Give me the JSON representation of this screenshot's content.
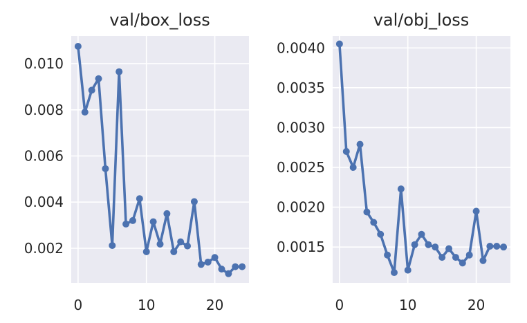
{
  "chart_data": [
    {
      "type": "line",
      "title": "val/box_loss",
      "xlabel": "",
      "ylabel": "",
      "xlim": [
        -1,
        25
      ],
      "ylim": [
        0.0005,
        0.0112
      ],
      "xticks": [
        0,
        10,
        20
      ],
      "xtick_labels": [
        "0",
        "10",
        "20"
      ],
      "yticks": [
        0.002,
        0.004,
        0.006,
        0.008,
        0.01
      ],
      "ytick_labels": [
        "0.002",
        "0.004",
        "0.006",
        "0.008",
        "0.010"
      ],
      "grid": true,
      "color": "#4c72b0",
      "x": [
        0,
        1,
        2,
        3,
        4,
        5,
        6,
        7,
        8,
        9,
        10,
        11,
        12,
        13,
        14,
        15,
        16,
        17,
        18,
        19,
        20,
        21,
        22,
        23,
        24
      ],
      "series": [
        {
          "values": [
            0.01075,
            0.0079,
            0.00885,
            0.00935,
            0.00545,
            0.00212,
            0.00965,
            0.00305,
            0.0032,
            0.00415,
            0.00185,
            0.00315,
            0.00218,
            0.0035,
            0.00185,
            0.00228,
            0.0021,
            0.00402,
            0.0013,
            0.0014,
            0.0016,
            0.0011,
            0.0009,
            0.0012,
            0.0012
          ]
        }
      ]
    },
    {
      "type": "line",
      "title": "val/obj_loss",
      "xlabel": "",
      "ylabel": "",
      "xlim": [
        -1,
        25
      ],
      "ylim": [
        0.00105,
        0.00415
      ],
      "xticks": [
        0,
        10,
        20
      ],
      "xtick_labels": [
        "0",
        "10",
        "20"
      ],
      "yticks": [
        0.0015,
        0.002,
        0.0025,
        0.003,
        0.0035,
        0.004
      ],
      "ytick_labels": [
        "0.0015",
        "0.0020",
        "0.0025",
        "0.0030",
        "0.0035",
        "0.0040"
      ],
      "grid": true,
      "color": "#4c72b0",
      "x": [
        0,
        1,
        2,
        3,
        4,
        5,
        6,
        7,
        8,
        9,
        10,
        11,
        12,
        13,
        14,
        15,
        16,
        17,
        18,
        19,
        20,
        21,
        22,
        23,
        24
      ],
      "series": [
        {
          "values": [
            0.00405,
            0.0027,
            0.0025,
            0.00279,
            0.00194,
            0.00181,
            0.00166,
            0.0014,
            0.00118,
            0.00223,
            0.00121,
            0.00153,
            0.00166,
            0.00153,
            0.0015,
            0.00137,
            0.00148,
            0.00137,
            0.0013,
            0.0014,
            0.00195,
            0.00133,
            0.00151,
            0.00151,
            0.0015
          ]
        }
      ]
    }
  ]
}
